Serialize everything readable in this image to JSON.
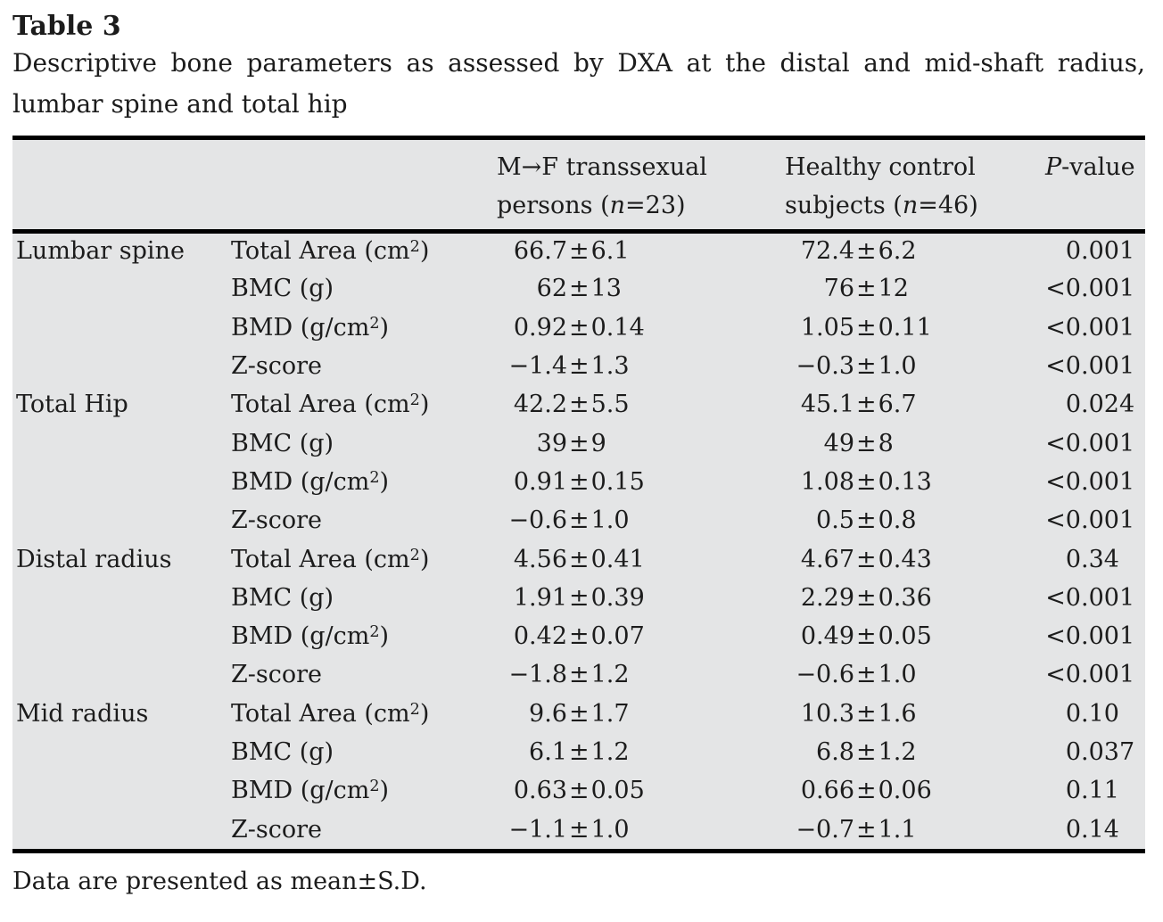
{
  "title": "Table 3",
  "caption_lines": [
    "Descriptive bone parameters as assessed by DXA at the distal and mid-shaft radius,",
    "lumbar spine and total hip"
  ],
  "footnote": "Data are presented as mean±S.D.",
  "colors": {
    "table_bg": "#e4e5e6",
    "rule": "#000000",
    "text": "#1c1c1c"
  },
  "table": {
    "header": {
      "col3": {
        "line1": "M→F transsexual",
        "line2": [
          {
            "t": "persons ("
          },
          {
            "t": "n",
            "i": 1
          },
          {
            "t": "=23)"
          }
        ]
      },
      "col4": {
        "line1": "Healthy control",
        "line2": [
          {
            "t": "subjects ("
          },
          {
            "t": "n",
            "i": 1
          },
          {
            "t": "=46)"
          }
        ]
      },
      "col5": {
        "line1": [
          {
            "t": "P",
            "i": 1
          },
          {
            "t": "-value"
          }
        ]
      }
    },
    "sections": [
      {
        "region": "Lumbar spine",
        "rows": [
          {
            "param": "Total Area (cm^2)",
            "mf": "66.7±6.1",
            "control": "72.4±6.2",
            "p": "0.001"
          },
          {
            "param": "BMC (g)",
            "mf": "62±13",
            "control": "76±12",
            "p": "<0.001"
          },
          {
            "param": "BMD (g/cm^2)",
            "mf": "0.92±0.14",
            "control": "1.05±0.11",
            "p": "<0.001"
          },
          {
            "param": "Z-score",
            "mf": "−1.4±1.3",
            "control": "−0.3±1.0",
            "p": "<0.001"
          }
        ]
      },
      {
        "region": "Total Hip",
        "rows": [
          {
            "param": "Total Area (cm^2)",
            "mf": "42.2±5.5",
            "control": "45.1±6.7",
            "p": "0.024"
          },
          {
            "param": "BMC (g)",
            "mf": "39±9",
            "control": "49±8",
            "p": "<0.001"
          },
          {
            "param": "BMD (g/cm^2)",
            "mf": "0.91±0.15",
            "control": "1.08±0.13",
            "p": "<0.001"
          },
          {
            "param": "Z-score",
            "mf": "−0.6±1.0",
            "control": "0.5±0.8",
            "p": "<0.001"
          }
        ]
      },
      {
        "region": "Distal radius",
        "rows": [
          {
            "param": "Total Area (cm^2)",
            "mf": "4.56±0.41",
            "control": "4.67±0.43",
            "p": "0.34"
          },
          {
            "param": "BMC (g)",
            "mf": "1.91±0.39",
            "control": "2.29±0.36",
            "p": "<0.001"
          },
          {
            "param": "BMD (g/cm^2)",
            "mf": "0.42±0.07",
            "control": "0.49±0.05",
            "p": "<0.001"
          },
          {
            "param": "Z-score",
            "mf": "−1.8±1.2",
            "control": "−0.6±1.0",
            "p": "<0.001"
          }
        ]
      },
      {
        "region": "Mid radius",
        "rows": [
          {
            "param": "Total Area (cm^2)",
            "mf": "9.6±1.7",
            "control": "10.3±1.6",
            "p": "0.10"
          },
          {
            "param": "BMC (g)",
            "mf": "6.1±1.2",
            "control": "6.8±1.2",
            "p": "0.037"
          },
          {
            "param": "BMD (g/cm^2)",
            "mf": "0.63±0.05",
            "control": "0.66±0.06",
            "p": "0.11"
          },
          {
            "param": "Z-score",
            "mf": "−1.1±1.0",
            "control": "−0.7±1.1",
            "p": "0.14"
          }
        ]
      }
    ]
  }
}
